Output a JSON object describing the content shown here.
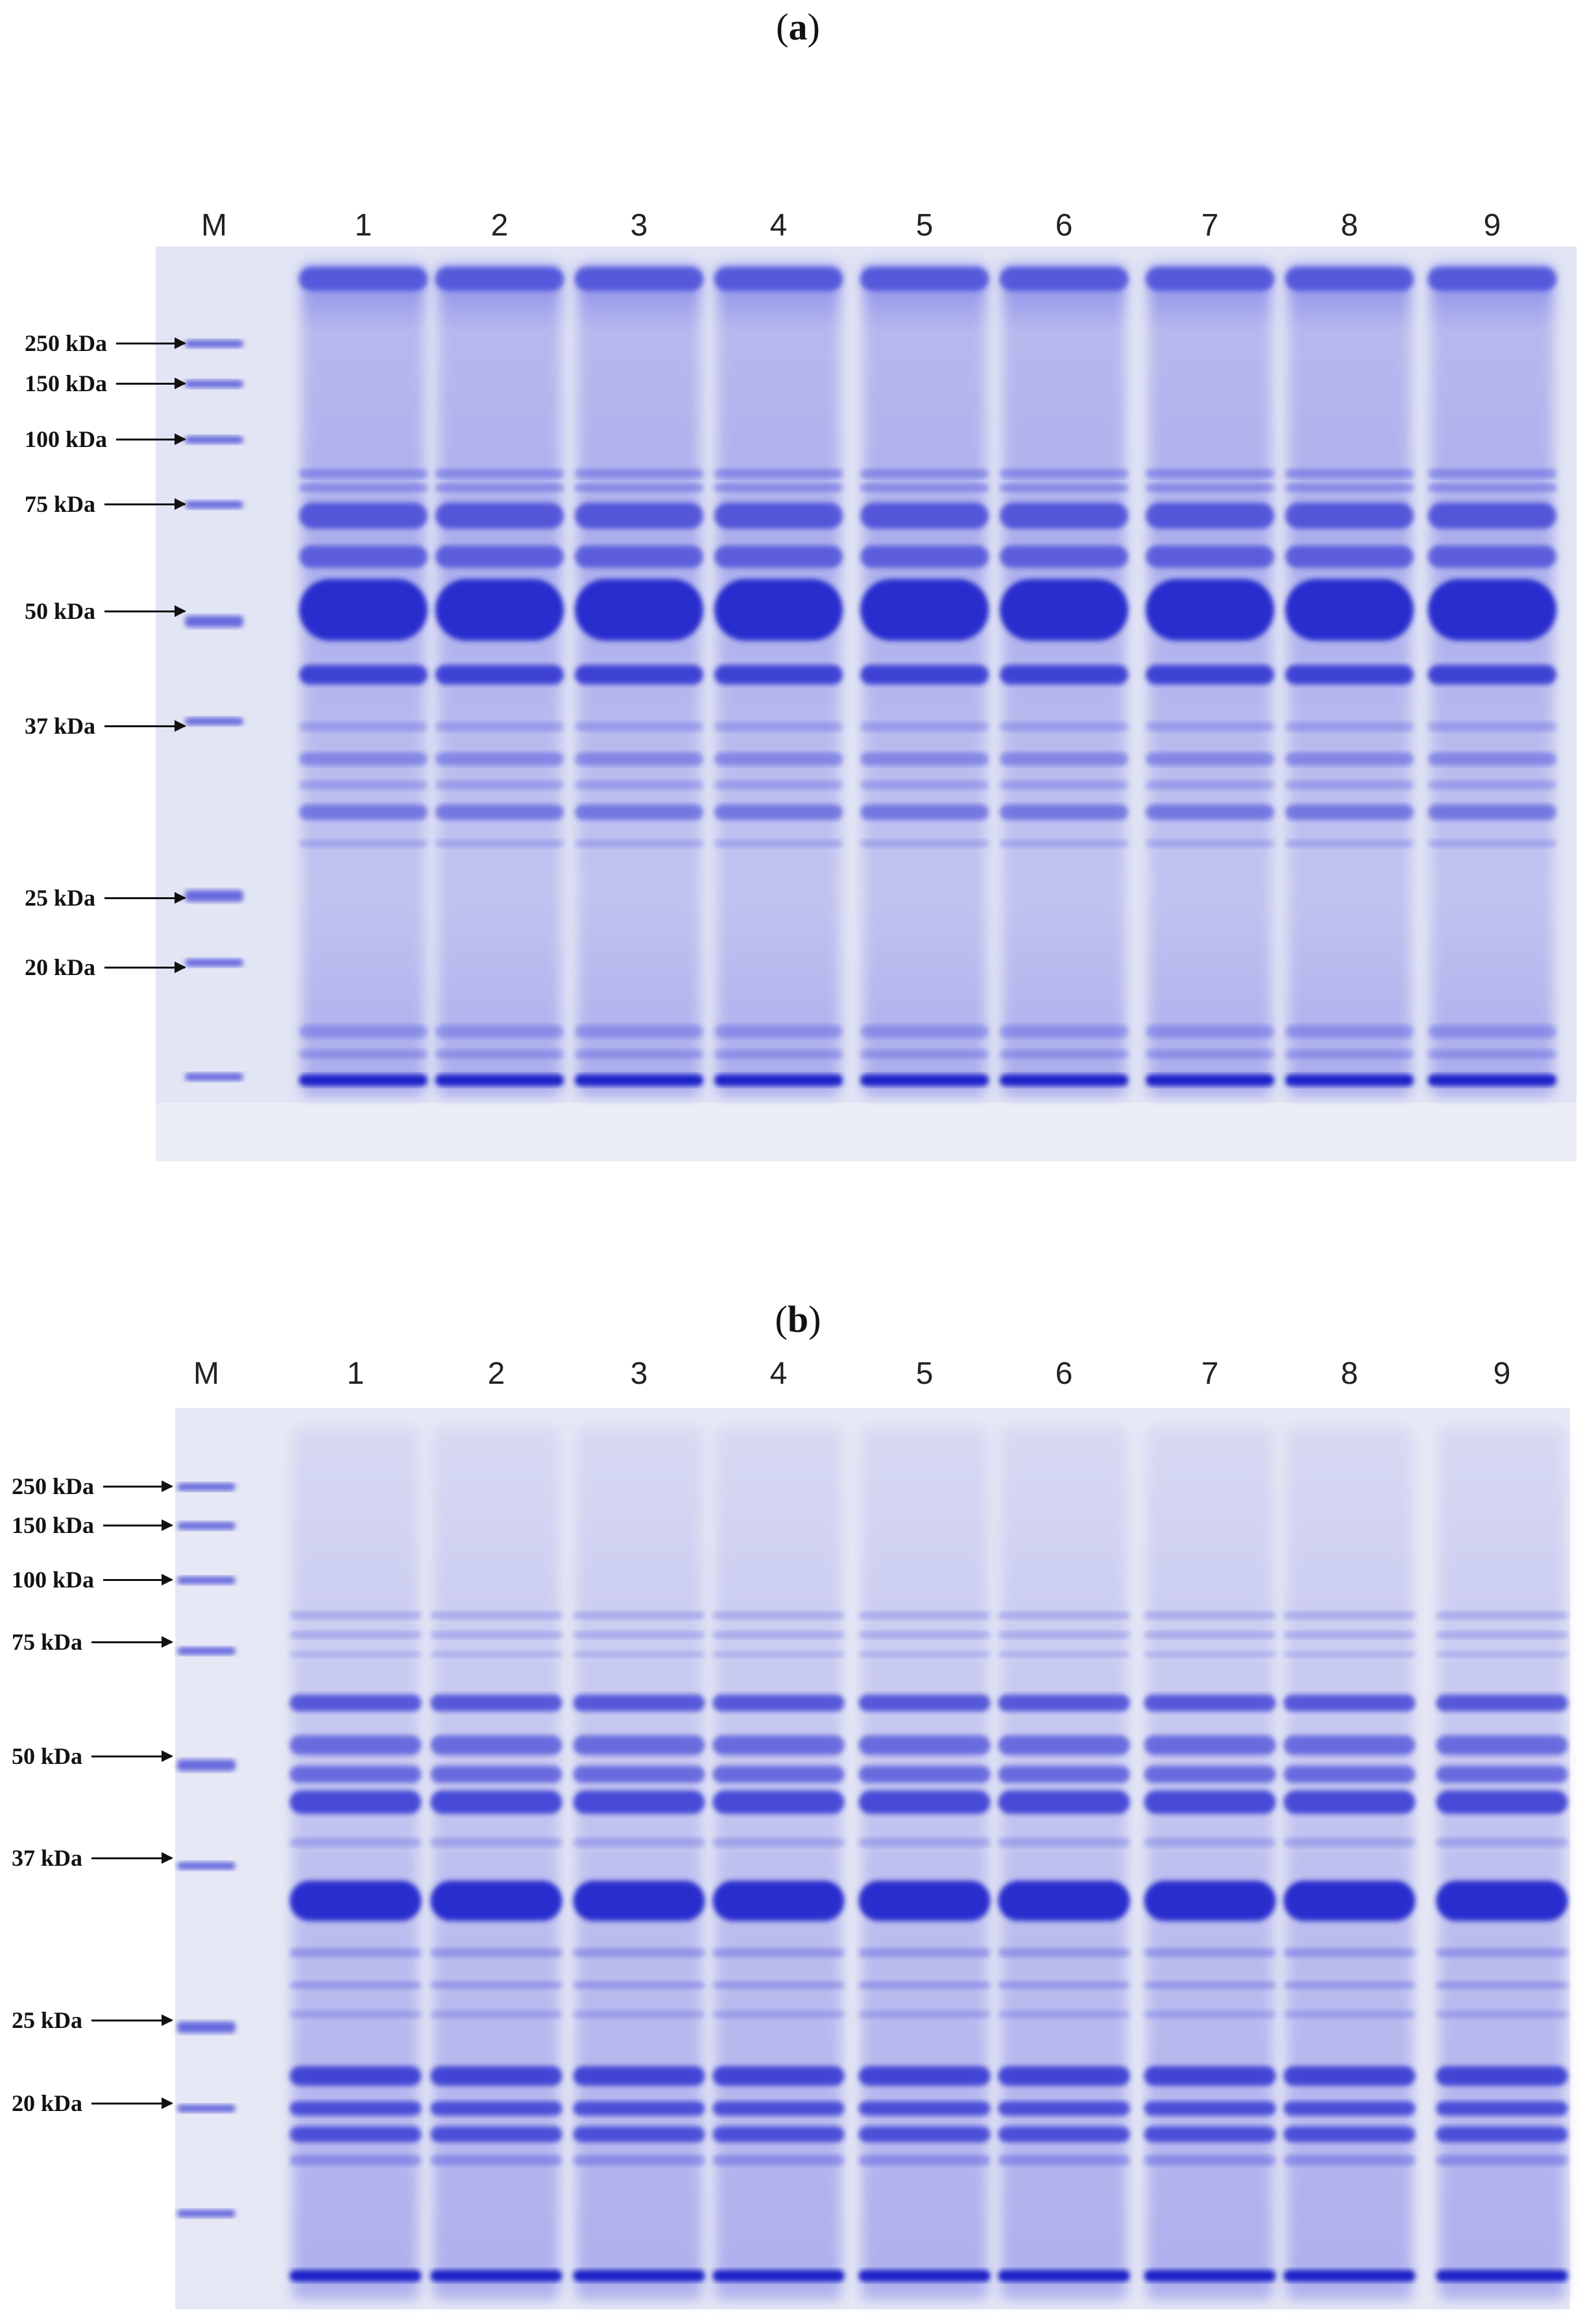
{
  "panels": [
    {
      "label_open": "(",
      "label_letter": "a",
      "label_close": ")",
      "lanes": [
        "M",
        "1",
        "2",
        "3",
        "4",
        "5",
        "6",
        "7",
        "8",
        "9"
      ],
      "markers": [
        "250 kDa",
        "150 kDa",
        "100 kDa",
        "75 kDa",
        "50 kDa",
        "37 kDa",
        "25 kDa",
        "20 kDa"
      ]
    },
    {
      "label_open": "(",
      "label_letter": "b",
      "label_close": ")",
      "lanes": [
        "M",
        "1",
        "2",
        "3",
        "4",
        "5",
        "6",
        "7",
        "8",
        "9"
      ],
      "markers": [
        "250 kDa",
        "150 kDa",
        "100 kDa",
        "75 kDa",
        "50 kDa",
        "37 kDa",
        "25 kDa",
        "20 kDa"
      ]
    }
  ],
  "colors": {
    "gel_bg": "#e3e6f4",
    "stain_dark": "#2a2ad0",
    "stain_mid": "#5a5ae0",
    "stain_light": "#a9abea"
  }
}
